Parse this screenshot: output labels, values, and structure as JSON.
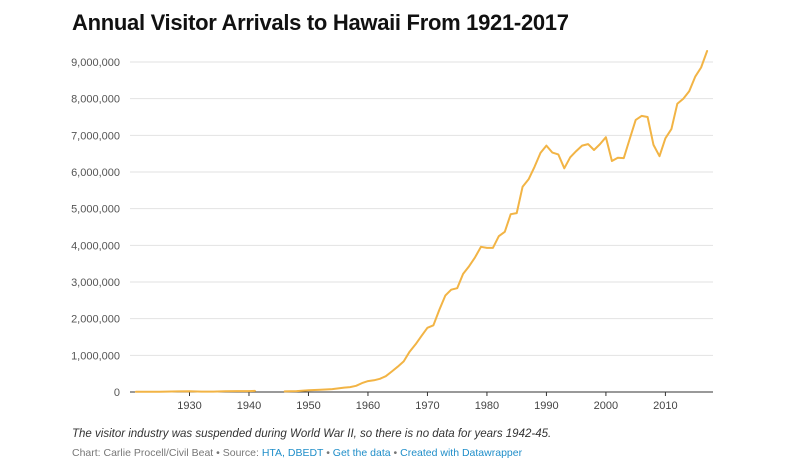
{
  "title": "Annual Visitor Arrivals to Hawaii From 1921-2017",
  "note": "The visitor industry was suspended during World War II, so there is no data for years 1942-45.",
  "credit": {
    "prefix": "Chart: Carlie Procell/Civil Beat • Source: ",
    "source_link": "HTA, DBEDT",
    "sep1": " • ",
    "data_link": "Get the data",
    "sep2": " • ",
    "datawrapper_link": "Created with Datawrapper"
  },
  "colors": {
    "line": "#f2b445",
    "grid": "#e2e2e2",
    "baseline": "#333333",
    "link": "#1f8ec9"
  },
  "chart_data": {
    "type": "line",
    "xlim": [
      1921,
      2017
    ],
    "ylim": [
      0,
      9000000
    ],
    "yticks": [
      0,
      1000000,
      2000000,
      3000000,
      4000000,
      5000000,
      6000000,
      7000000,
      8000000,
      9000000
    ],
    "ytick_labels": [
      "0",
      "1,000,000",
      "2,000,000",
      "3,000,000",
      "4,000,000",
      "5,000,000",
      "6,000,000",
      "7,000,000",
      "8,000,000",
      "9,000,000"
    ],
    "xticks": [
      1930,
      1940,
      1950,
      1960,
      1970,
      1980,
      1990,
      2000,
      2010
    ],
    "xtick_labels": [
      "1930",
      "1940",
      "1950",
      "1960",
      "1970",
      "1980",
      "1990",
      "2000",
      "2010"
    ],
    "grid": true,
    "series": [
      {
        "segments": [
          [
            [
              1921,
              5000
            ],
            [
              1925,
              8000
            ],
            [
              1928,
              15000
            ],
            [
              1930,
              18000
            ],
            [
              1932,
              10000
            ],
            [
              1934,
              12000
            ],
            [
              1936,
              20000
            ],
            [
              1938,
              24000
            ],
            [
              1940,
              25000
            ],
            [
              1941,
              30000
            ]
          ],
          [
            [
              1946,
              15000
            ],
            [
              1948,
              25000
            ],
            [
              1950,
              46000
            ],
            [
              1952,
              60000
            ],
            [
              1954,
              80000
            ],
            [
              1956,
              120000
            ],
            [
              1957,
              135000
            ],
            [
              1958,
              170000
            ],
            [
              1959,
              243000
            ],
            [
              1960,
              296000
            ],
            [
              1961,
              320000
            ],
            [
              1962,
              360000
            ],
            [
              1963,
              430000
            ],
            [
              1964,
              560000
            ],
            [
              1965,
              690000
            ],
            [
              1966,
              835000
            ],
            [
              1967,
              1100000
            ],
            [
              1968,
              1300000
            ],
            [
              1969,
              1530000
            ],
            [
              1970,
              1750000
            ],
            [
              1971,
              1820000
            ],
            [
              1972,
              2240000
            ],
            [
              1973,
              2630000
            ],
            [
              1974,
              2790000
            ],
            [
              1975,
              2830000
            ],
            [
              1976,
              3220000
            ],
            [
              1977,
              3430000
            ],
            [
              1978,
              3670000
            ],
            [
              1979,
              3960000
            ],
            [
              1980,
              3930000
            ],
            [
              1981,
              3930000
            ],
            [
              1982,
              4250000
            ],
            [
              1983,
              4370000
            ],
            [
              1984,
              4850000
            ],
            [
              1985,
              4880000
            ],
            [
              1986,
              5600000
            ],
            [
              1987,
              5800000
            ],
            [
              1988,
              6140000
            ],
            [
              1989,
              6520000
            ],
            [
              1990,
              6720000
            ],
            [
              1991,
              6530000
            ],
            [
              1992,
              6480000
            ],
            [
              1993,
              6100000
            ],
            [
              1994,
              6400000
            ],
            [
              1995,
              6570000
            ],
            [
              1996,
              6720000
            ],
            [
              1997,
              6760000
            ],
            [
              1998,
              6600000
            ],
            [
              1999,
              6760000
            ],
            [
              2000,
              6950000
            ],
            [
              2001,
              6300000
            ],
            [
              2002,
              6390000
            ],
            [
              2003,
              6380000
            ],
            [
              2004,
              6900000
            ],
            [
              2005,
              7420000
            ],
            [
              2006,
              7530000
            ],
            [
              2007,
              7500000
            ],
            [
              2008,
              6740000
            ],
            [
              2009,
              6430000
            ],
            [
              2010,
              6920000
            ],
            [
              2011,
              7170000
            ],
            [
              2012,
              7860000
            ],
            [
              2013,
              8000000
            ],
            [
              2014,
              8200000
            ],
            [
              2015,
              8600000
            ],
            [
              2016,
              8850000
            ],
            [
              2017,
              9300000
            ]
          ]
        ]
      }
    ]
  }
}
